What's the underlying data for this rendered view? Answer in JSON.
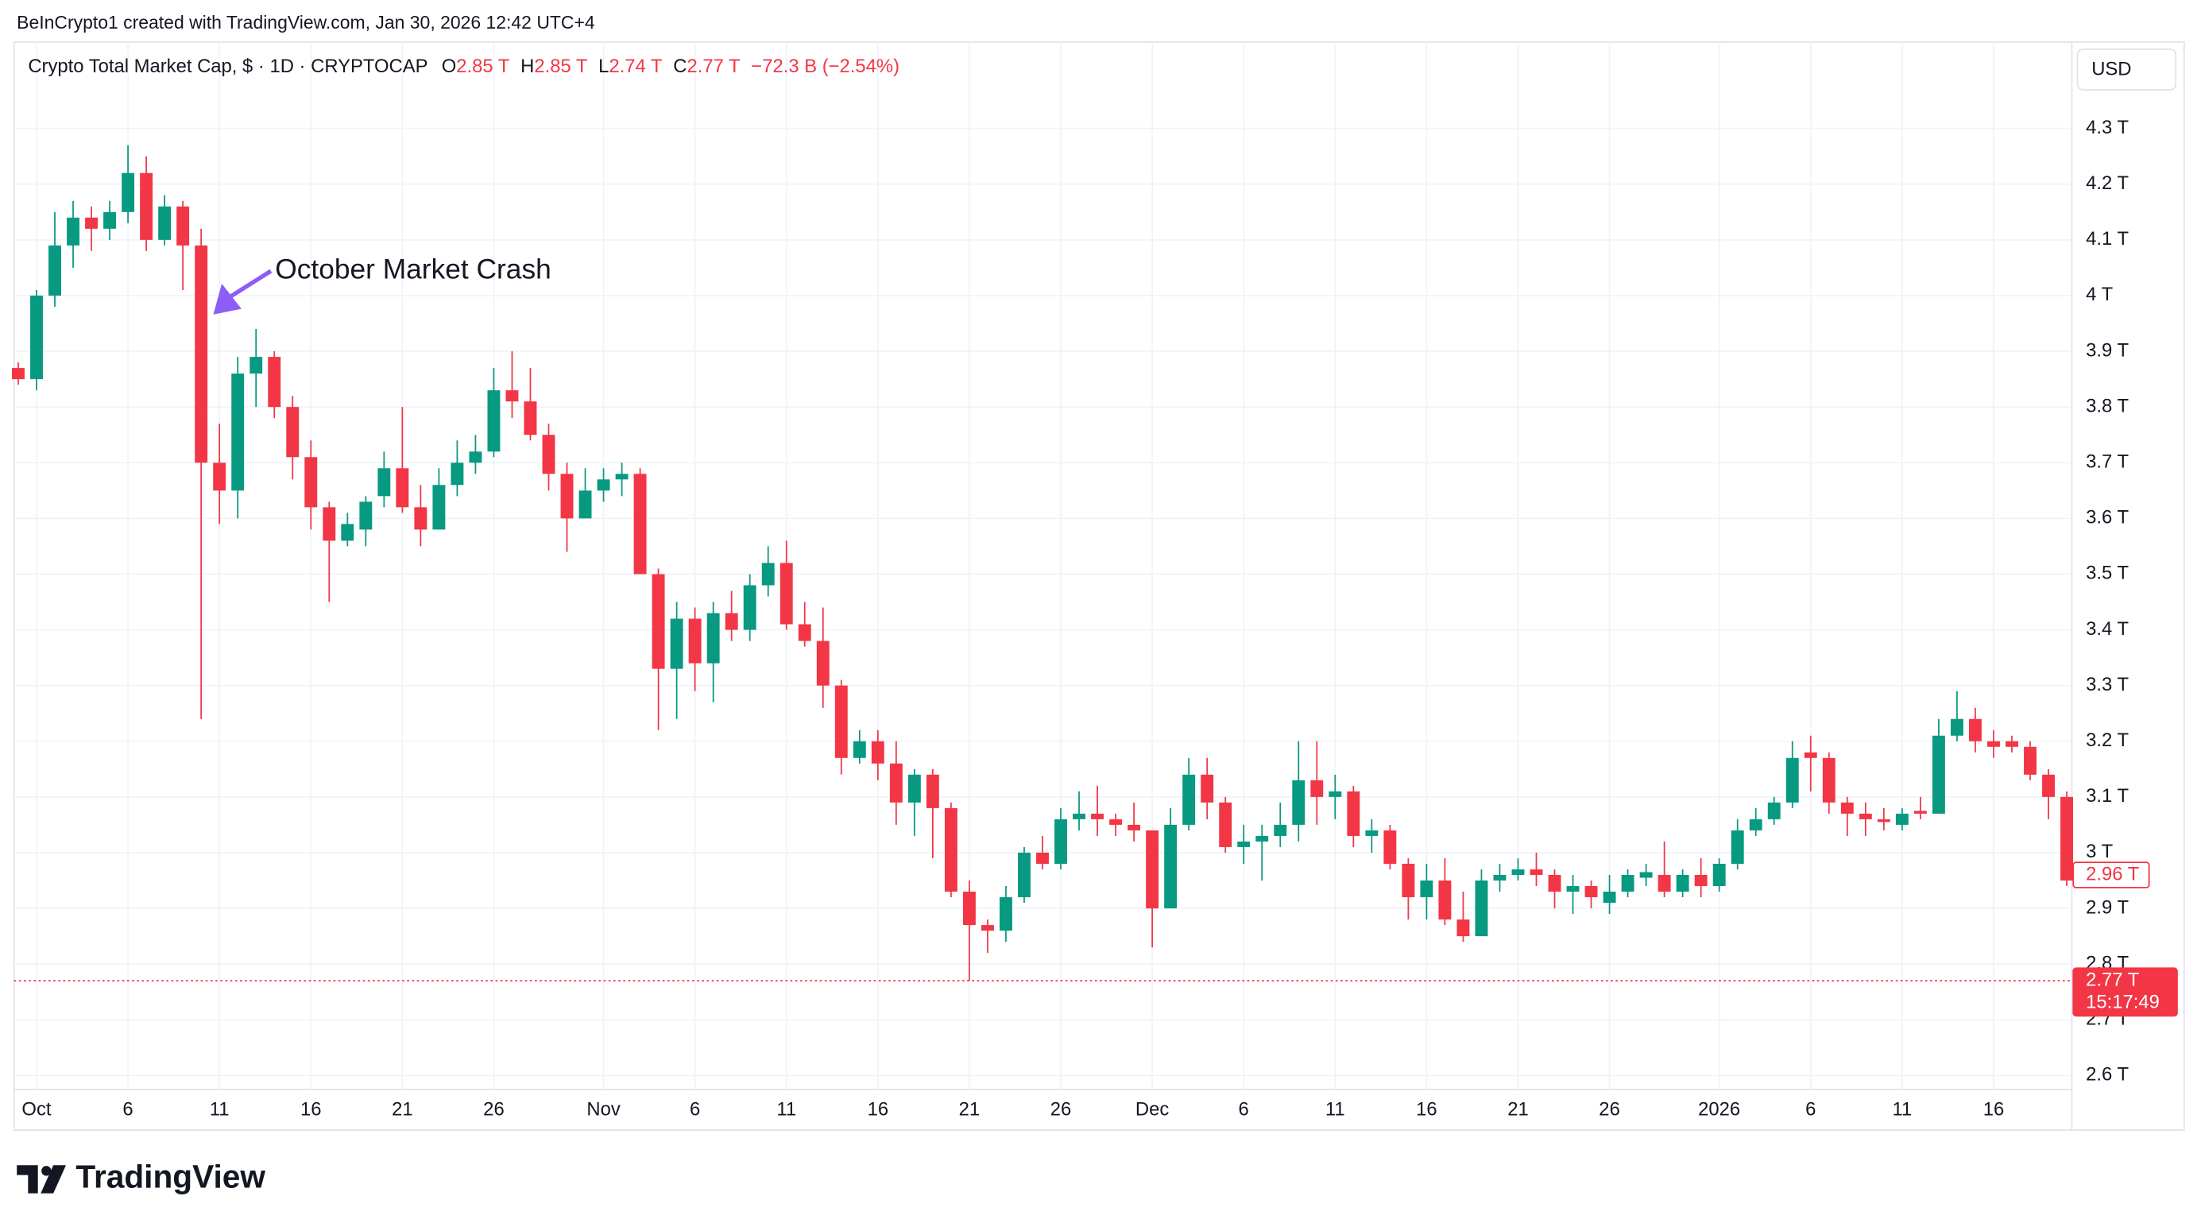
{
  "header": {
    "credit": "BeInCrypto1 created with TradingView.com, Jan 30, 2026 12:42 UTC+4",
    "symbol": "Crypto Total Market Cap, $ · 1D · CRYPTOCAP",
    "ohlc": [
      {
        "key": "O",
        "value": "2.85 T"
      },
      {
        "key": "H",
        "value": "2.85 T"
      },
      {
        "key": "L",
        "value": "2.74 T"
      },
      {
        "key": "C",
        "value": "2.77 T"
      }
    ],
    "change": "−72.3 B (−2.54%)",
    "currency": "USD"
  },
  "logo": "TradingView",
  "chart_data": {
    "type": "candlestick",
    "annotation": "October Market Crash",
    "up_color": "#089981",
    "down_color": "#f23645",
    "grid": true,
    "categories": [
      null,
      "Oct",
      null,
      null,
      null,
      null,
      "6",
      null,
      null,
      null,
      null,
      "11",
      null,
      null,
      null,
      null,
      "16",
      null,
      null,
      null,
      null,
      "21",
      null,
      null,
      null,
      null,
      "26",
      null,
      null,
      null,
      null,
      null,
      "Nov",
      null,
      null,
      null,
      null,
      "6",
      null,
      null,
      null,
      null,
      "11",
      null,
      null,
      null,
      null,
      "16",
      null,
      null,
      null,
      null,
      "21",
      null,
      null,
      null,
      null,
      "26",
      null,
      null,
      null,
      null,
      "Dec",
      null,
      null,
      null,
      null,
      "6",
      null,
      null,
      null,
      null,
      "11",
      null,
      null,
      null,
      null,
      "16",
      null,
      null,
      null,
      null,
      "21",
      null,
      null,
      null,
      null,
      "26",
      null,
      null,
      null,
      null,
      null,
      "2026",
      null,
      null,
      null,
      null,
      "6",
      null,
      null,
      null,
      null,
      "11",
      null,
      null,
      null,
      null,
      "16",
      null,
      null,
      null,
      null
    ],
    "open": [
      3.87,
      3.85,
      4.0,
      4.09,
      4.14,
      4.12,
      4.15,
      4.22,
      4.1,
      4.16,
      4.09,
      3.7,
      3.65,
      3.86,
      3.89,
      3.8,
      3.71,
      3.62,
      3.56,
      3.58,
      3.64,
      3.69,
      3.62,
      3.58,
      3.66,
      3.7,
      3.72,
      3.83,
      3.81,
      3.75,
      3.68,
      3.6,
      3.65,
      3.67,
      3.68,
      3.5,
      3.33,
      3.42,
      3.34,
      3.43,
      3.4,
      3.48,
      3.52,
      3.41,
      3.38,
      3.3,
      3.17,
      3.2,
      3.16,
      3.09,
      3.14,
      3.08,
      2.93,
      2.87,
      2.86,
      2.92,
      3.0,
      2.98,
      3.06,
      3.07,
      3.06,
      3.05,
      3.04,
      2.9,
      3.05,
      3.14,
      3.09,
      3.01,
      3.02,
      3.03,
      3.05,
      3.13,
      3.1,
      3.11,
      3.03,
      3.04,
      2.98,
      2.92,
      2.95,
      2.88,
      2.85,
      2.95,
      2.96,
      2.97,
      2.96,
      2.93,
      2.94,
      2.91,
      2.93,
      2.955,
      2.96,
      2.93,
      2.96,
      2.94,
      2.98,
      3.04,
      3.06,
      3.09,
      3.18,
      3.17,
      3.09,
      3.07,
      3.06,
      3.05,
      3.075,
      3.07,
      3.21,
      3.24,
      3.2,
      3.2,
      3.19,
      3.14,
      3.1
    ],
    "high": [
      3.88,
      4.01,
      4.15,
      4.17,
      4.16,
      4.17,
      4.27,
      4.25,
      4.18,
      4.17,
      4.12,
      3.77,
      3.89,
      3.94,
      3.9,
      3.82,
      3.74,
      3.63,
      3.61,
      3.64,
      3.72,
      3.8,
      3.66,
      3.69,
      3.74,
      3.75,
      3.87,
      3.9,
      3.87,
      3.77,
      3.7,
      3.69,
      3.69,
      3.7,
      3.69,
      3.51,
      3.45,
      3.44,
      3.45,
      3.47,
      3.5,
      3.55,
      3.56,
      3.45,
      3.44,
      3.31,
      3.22,
      3.22,
      3.2,
      3.15,
      3.15,
      3.09,
      2.95,
      2.88,
      2.94,
      3.01,
      3.03,
      3.08,
      3.11,
      3.12,
      3.07,
      3.09,
      3.04,
      3.08,
      3.17,
      3.17,
      3.1,
      3.05,
      3.05,
      3.09,
      3.2,
      3.2,
      3.14,
      3.12,
      3.06,
      3.05,
      2.99,
      2.98,
      2.99,
      2.93,
      2.97,
      2.98,
      2.99,
      3.0,
      2.97,
      2.96,
      2.95,
      2.96,
      2.97,
      2.98,
      3.02,
      2.97,
      2.99,
      2.99,
      3.06,
      3.08,
      3.1,
      3.2,
      3.21,
      3.18,
      3.1,
      3.09,
      3.08,
      3.08,
      3.1,
      3.24,
      3.29,
      3.26,
      3.22,
      3.21,
      3.2,
      3.15,
      3.11
    ],
    "low": [
      3.84,
      3.83,
      3.98,
      4.05,
      4.08,
      4.1,
      4.13,
      4.08,
      4.09,
      4.01,
      3.24,
      3.59,
      3.6,
      3.8,
      3.78,
      3.67,
      3.58,
      3.45,
      3.55,
      3.55,
      3.62,
      3.61,
      3.55,
      3.58,
      3.64,
      3.68,
      3.71,
      3.78,
      3.74,
      3.65,
      3.54,
      3.6,
      3.63,
      3.64,
      3.5,
      3.22,
      3.24,
      3.29,
      3.27,
      3.38,
      3.38,
      3.46,
      3.4,
      3.37,
      3.26,
      3.14,
      3.16,
      3.13,
      3.05,
      3.03,
      2.99,
      2.92,
      2.77,
      2.82,
      2.84,
      2.91,
      2.97,
      2.97,
      3.04,
      3.03,
      3.03,
      3.02,
      2.83,
      2.9,
      3.04,
      3.06,
      3.0,
      2.98,
      2.95,
      3.01,
      3.02,
      3.05,
      3.06,
      3.01,
      3.0,
      2.97,
      2.88,
      2.88,
      2.87,
      2.84,
      2.85,
      2.93,
      2.95,
      2.94,
      2.9,
      2.89,
      2.9,
      2.89,
      2.92,
      2.94,
      2.92,
      2.92,
      2.92,
      2.93,
      2.97,
      3.03,
      3.05,
      3.08,
      3.11,
      3.07,
      3.03,
      3.03,
      3.04,
      3.04,
      3.06,
      3.07,
      3.2,
      3.18,
      3.17,
      3.18,
      3.13,
      3.06,
      2.94
    ],
    "close": [
      3.85,
      4.0,
      4.09,
      4.14,
      4.12,
      4.15,
      4.22,
      4.1,
      4.16,
      4.09,
      3.7,
      3.65,
      3.86,
      3.89,
      3.8,
      3.71,
      3.62,
      3.56,
      3.59,
      3.63,
      3.69,
      3.62,
      3.58,
      3.66,
      3.7,
      3.72,
      3.83,
      3.81,
      3.75,
      3.68,
      3.6,
      3.65,
      3.67,
      3.68,
      3.5,
      3.33,
      3.42,
      3.34,
      3.43,
      3.4,
      3.48,
      3.52,
      3.41,
      3.38,
      3.3,
      3.17,
      3.2,
      3.16,
      3.09,
      3.14,
      3.08,
      2.93,
      2.87,
      2.86,
      2.92,
      3.0,
      2.98,
      3.06,
      3.07,
      3.06,
      3.05,
      3.04,
      2.9,
      3.05,
      3.14,
      3.09,
      3.01,
      3.02,
      3.03,
      3.05,
      3.13,
      3.1,
      3.11,
      3.03,
      3.04,
      2.98,
      2.92,
      2.95,
      2.88,
      2.85,
      2.95,
      2.96,
      2.97,
      2.96,
      2.93,
      2.94,
      2.92,
      2.93,
      2.96,
      2.965,
      2.93,
      2.96,
      2.94,
      2.98,
      3.04,
      3.06,
      3.09,
      3.17,
      3.17,
      3.09,
      3.07,
      3.06,
      3.055,
      3.07,
      3.07,
      3.21,
      3.24,
      3.2,
      3.19,
      3.19,
      3.14,
      3.1,
      2.95
    ],
    "ylim": [
      2.575,
      4.455
    ],
    "yticks": [
      {
        "value": 2.6,
        "label": "2.6 T"
      },
      {
        "value": 2.7,
        "label": "2.7 T"
      },
      {
        "value": 2.8,
        "label": "2.8 T"
      },
      {
        "value": 2.9,
        "label": "2.9 T"
      },
      {
        "value": 3,
        "label": "3 T"
      },
      {
        "value": 3.1,
        "label": "3.1 T"
      },
      {
        "value": 3.2,
        "label": "3.2 T"
      },
      {
        "value": 3.3,
        "label": "3.3 T"
      },
      {
        "value": 3.4,
        "label": "3.4 T"
      },
      {
        "value": 3.5,
        "label": "3.5 T"
      },
      {
        "value": 3.6,
        "label": "3.6 T"
      },
      {
        "value": 3.7,
        "label": "3.7 T"
      },
      {
        "value": 3.8,
        "label": "3.8 T"
      },
      {
        "value": 3.9,
        "label": "3.9 T"
      },
      {
        "value": 4,
        "label": "4 T"
      },
      {
        "value": 4.1,
        "label": "4.1 T"
      },
      {
        "value": 4.2,
        "label": "4.2 T"
      },
      {
        "value": 4.3,
        "label": "4.3 T"
      }
    ],
    "price_markers": [
      {
        "value": 2.96,
        "label": "2.96 T",
        "style": "outline"
      },
      {
        "value": 2.77,
        "label": "2.77 T",
        "countdown": "15:17:49",
        "style": "filled",
        "line": true
      }
    ]
  }
}
